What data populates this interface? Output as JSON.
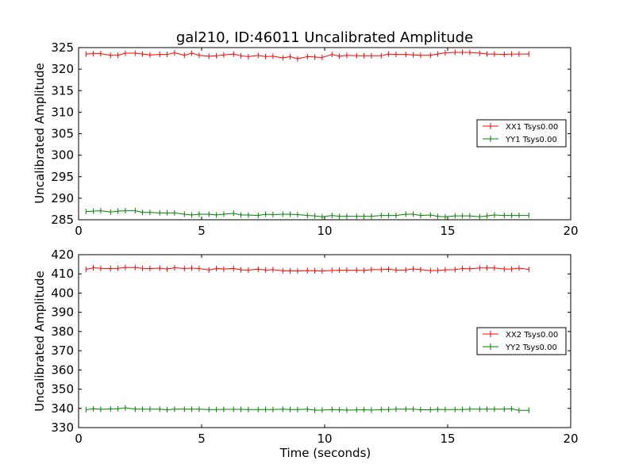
{
  "chart_data": [
    {
      "type": "line",
      "title": "gal210, ID:46011 Uncalibrated Amplitude",
      "xlabel": "",
      "ylabel": "Uncalibrated Amplitude",
      "xlim": [
        0,
        20
      ],
      "ylim": [
        285,
        325
      ],
      "x_ticks": [
        0,
        5,
        10,
        15,
        20
      ],
      "y_ticks": [
        285,
        290,
        295,
        300,
        305,
        310,
        315,
        320,
        325
      ],
      "legend_position": "center-right",
      "grid": false,
      "x": [
        0.3,
        0.6,
        0.9,
        1.3,
        1.6,
        1.9,
        2.3,
        2.6,
        2.9,
        3.3,
        3.6,
        3.9,
        4.3,
        4.6,
        4.9,
        5.3,
        5.6,
        5.9,
        6.3,
        6.6,
        6.9,
        7.3,
        7.6,
        7.9,
        8.3,
        8.6,
        8.9,
        9.3,
        9.6,
        9.9,
        10.3,
        10.6,
        10.9,
        11.3,
        11.6,
        11.9,
        12.3,
        12.6,
        12.9,
        13.3,
        13.6,
        13.9,
        14.3,
        14.6,
        14.9,
        15.3,
        15.6,
        15.9,
        16.3,
        16.6,
        16.9,
        17.3,
        17.6,
        17.9,
        18.3
      ],
      "series": [
        {
          "name": "XX1 Tsys0.00",
          "color": "#ff0000",
          "values": [
            323.5,
            323.6,
            323.6,
            323.2,
            323.2,
            323.7,
            323.7,
            323.5,
            323.3,
            323.4,
            323.4,
            323.8,
            323.2,
            323.7,
            323.2,
            323.0,
            323.1,
            323.3,
            323.5,
            323.1,
            322.9,
            323.2,
            322.9,
            323.0,
            322.6,
            322.9,
            322.4,
            322.9,
            322.8,
            322.7,
            323.4,
            323.0,
            323.2,
            323.1,
            323.1,
            323.1,
            323.1,
            323.5,
            323.4,
            323.4,
            323.3,
            323.2,
            323.2,
            323.5,
            323.8,
            323.9,
            323.9,
            323.9,
            323.7,
            323.5,
            323.5,
            323.4,
            323.5,
            323.5,
            323.5
          ]
        },
        {
          "name": "YY1 Tsys0.00",
          "color": "#008000",
          "values": [
            286.9,
            287.0,
            287.1,
            286.8,
            287.0,
            287.1,
            287.1,
            286.7,
            286.7,
            286.6,
            286.6,
            286.6,
            286.3,
            286.1,
            286.3,
            286.3,
            286.1,
            286.3,
            286.5,
            286.1,
            286.1,
            286.0,
            286.3,
            286.2,
            286.3,
            286.3,
            286.2,
            286.0,
            285.9,
            285.7,
            286.0,
            285.8,
            285.8,
            285.8,
            285.8,
            285.8,
            286.0,
            286.0,
            286.0,
            286.3,
            286.3,
            286.0,
            286.1,
            285.8,
            285.7,
            285.9,
            285.9,
            285.9,
            285.7,
            285.9,
            286.1,
            286.0,
            286.0,
            286.0,
            286.0
          ]
        }
      ]
    },
    {
      "type": "line",
      "title": "",
      "xlabel": "Time (seconds)",
      "ylabel": "Uncalibrated Amplitude",
      "xlim": [
        0,
        20
      ],
      "ylim": [
        330,
        420
      ],
      "x_ticks": [
        0,
        5,
        10,
        15,
        20
      ],
      "y_ticks": [
        330,
        340,
        350,
        360,
        370,
        380,
        390,
        400,
        410,
        420
      ],
      "legend_position": "center-right",
      "grid": false,
      "x": [
        0.3,
        0.6,
        0.9,
        1.3,
        1.6,
        1.9,
        2.3,
        2.6,
        2.9,
        3.3,
        3.6,
        3.9,
        4.3,
        4.6,
        4.9,
        5.3,
        5.6,
        5.9,
        6.3,
        6.6,
        6.9,
        7.3,
        7.6,
        7.9,
        8.3,
        8.6,
        8.9,
        9.3,
        9.6,
        9.9,
        10.3,
        10.6,
        10.9,
        11.3,
        11.6,
        11.9,
        12.3,
        12.6,
        12.9,
        13.3,
        13.6,
        13.9,
        14.3,
        14.6,
        14.9,
        15.3,
        15.6,
        15.9,
        16.3,
        16.6,
        16.9,
        17.3,
        17.6,
        17.9,
        18.3
      ],
      "series": [
        {
          "name": "XX2 Tsys0.00",
          "color": "#ff0000",
          "values": [
            412.3,
            413.2,
            412.9,
            412.8,
            412.9,
            413.3,
            413.3,
            412.9,
            412.8,
            413.0,
            412.5,
            413.2,
            412.8,
            413.0,
            412.8,
            412.0,
            412.8,
            412.5,
            412.8,
            412.1,
            412.0,
            412.4,
            412.0,
            412.2,
            411.6,
            411.6,
            411.5,
            411.7,
            411.6,
            411.5,
            411.8,
            411.9,
            411.9,
            411.9,
            411.8,
            412.2,
            412.2,
            412.4,
            412.0,
            412.0,
            412.6,
            412.2,
            411.7,
            411.8,
            412.1,
            412.2,
            412.8,
            412.6,
            413.1,
            413.1,
            413.1,
            412.5,
            412.5,
            413.0,
            412.3
          ]
        },
        {
          "name": "YY2 Tsys0.00",
          "color": "#008000",
          "values": [
            339.3,
            339.8,
            339.5,
            339.7,
            339.8,
            340.3,
            339.6,
            339.6,
            339.6,
            339.6,
            339.3,
            339.6,
            339.6,
            339.6,
            339.6,
            339.4,
            339.4,
            339.5,
            339.5,
            339.5,
            339.4,
            339.4,
            339.4,
            339.4,
            339.6,
            339.4,
            339.4,
            339.6,
            339.1,
            339.1,
            339.4,
            339.3,
            339.1,
            339.2,
            339.3,
            339.1,
            339.4,
            339.4,
            339.6,
            339.6,
            339.6,
            339.3,
            339.3,
            339.5,
            339.4,
            339.4,
            339.4,
            339.6,
            339.6,
            339.6,
            339.6,
            339.6,
            339.8,
            339.0,
            339.0
          ]
        }
      ]
    }
  ]
}
